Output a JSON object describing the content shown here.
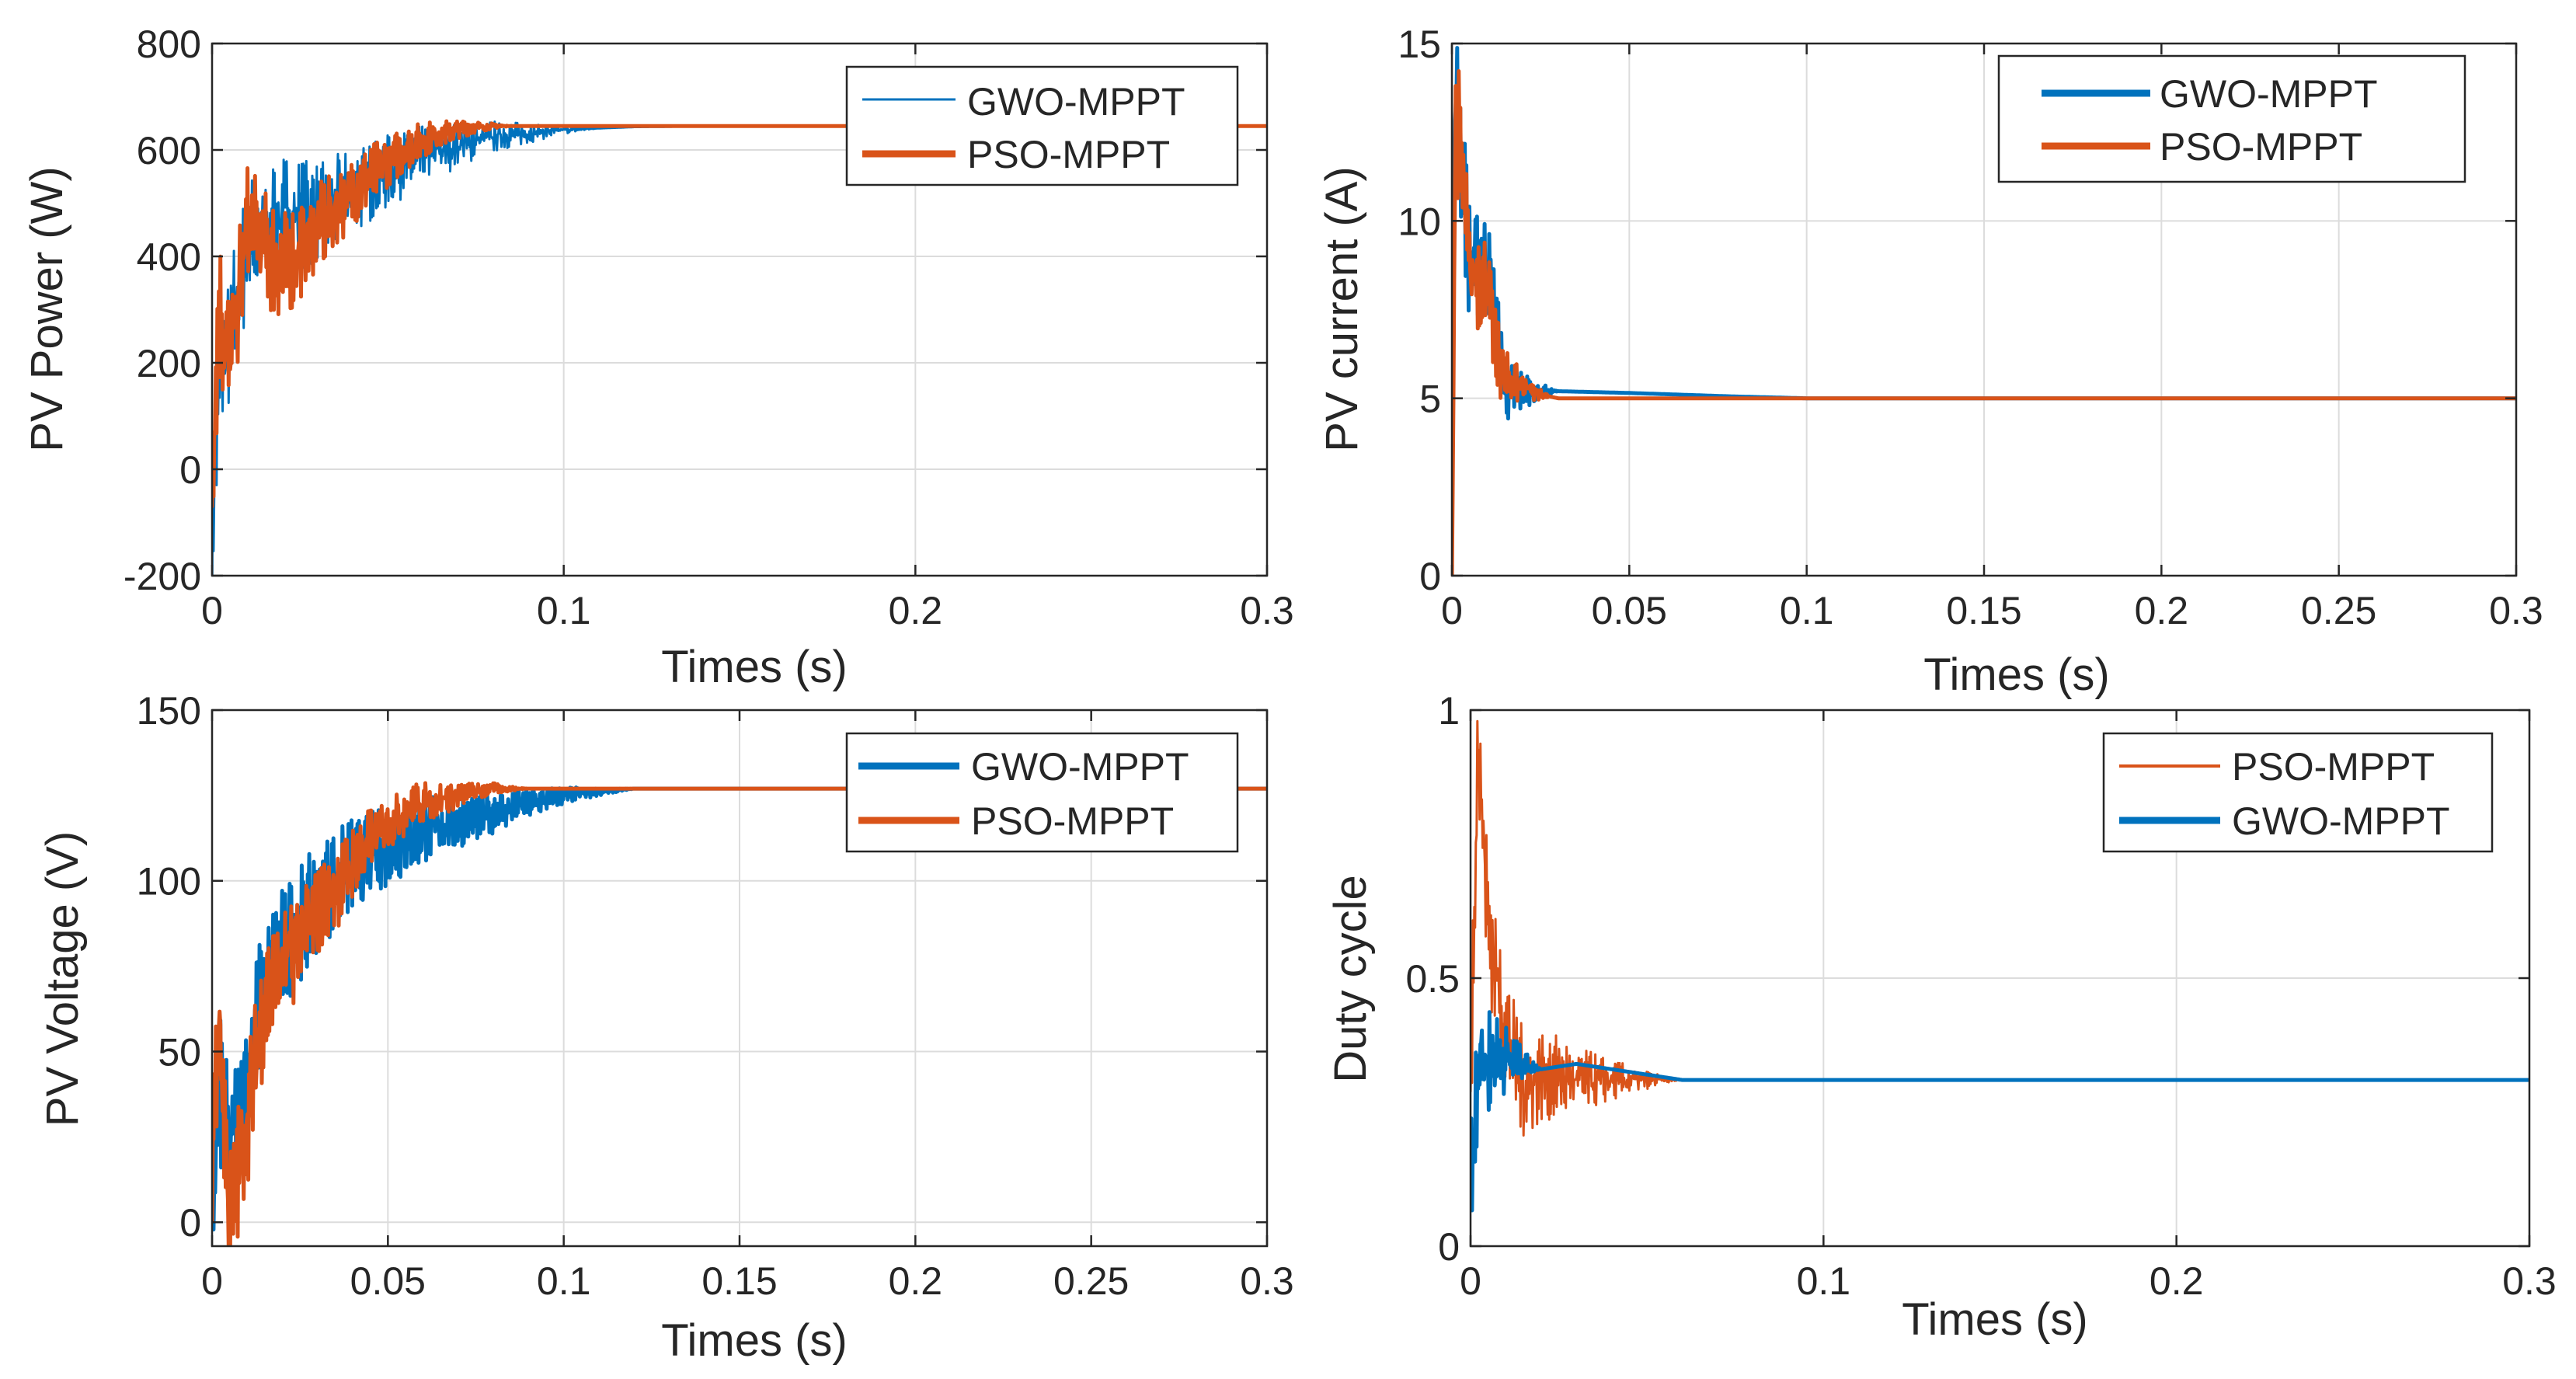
{
  "colors": {
    "blue": "#0072BD",
    "orange": "#D95319",
    "grid": "#DCDCDC",
    "axis": "#262626"
  },
  "charts": [
    {
      "id": "power",
      "ylabel": "PV Power (W)",
      "xlabel": "Times (s)",
      "xlim": [
        0,
        0.3
      ],
      "ylim": [
        -200,
        800
      ],
      "xticks": [
        0,
        0.1,
        0.2,
        0.3
      ],
      "xtick_labels": [
        "0",
        "0.1",
        "0.2",
        "0.3"
      ],
      "yticks": [
        -200,
        0,
        200,
        400,
        600,
        800
      ],
      "ytick_labels": [
        "-200",
        "0",
        "200",
        "400",
        "600",
        "800"
      ],
      "legend": [
        {
          "name": "GWO-MPPT",
          "color": "#0072BD",
          "width": "thin"
        },
        {
          "name": "PSO-MPPT",
          "color": "#D95319",
          "width": "thick"
        }
      ]
    },
    {
      "id": "current",
      "ylabel": "PV current (A)",
      "xlabel": "Times (s)",
      "xlim": [
        0,
        0.3
      ],
      "ylim": [
        0,
        15
      ],
      "xticks": [
        0,
        0.05,
        0.1,
        0.15,
        0.2,
        0.25,
        0.3
      ],
      "xtick_labels": [
        "0",
        "0.05",
        "0.1",
        "0.15",
        "0.2",
        "0.25",
        "0.3"
      ],
      "yticks": [
        0,
        5,
        10,
        15
      ],
      "ytick_labels": [
        "0",
        "5",
        "10",
        "15"
      ],
      "legend": [
        {
          "name": "GWO-MPPT",
          "color": "#0072BD",
          "width": "thick"
        },
        {
          "name": "PSO-MPPT",
          "color": "#D95319",
          "width": "thick"
        }
      ]
    },
    {
      "id": "voltage",
      "ylabel": "PV Voltage (V)",
      "xlabel": "Times (s)",
      "xlim": [
        0,
        0.3
      ],
      "ylim": [
        -7,
        150
      ],
      "xticks": [
        0,
        0.05,
        0.1,
        0.15,
        0.2,
        0.25,
        0.3
      ],
      "xtick_labels": [
        "0",
        "0.05",
        "0.1",
        "0.15",
        "0.2",
        "0.25",
        "0.3"
      ],
      "yticks": [
        0,
        50,
        100,
        150
      ],
      "ytick_labels": [
        "0",
        "50",
        "100",
        "150"
      ],
      "legend": [
        {
          "name": "GWO-MPPT",
          "color": "#0072BD",
          "width": "thick"
        },
        {
          "name": "PSO-MPPT",
          "color": "#D95319",
          "width": "thick"
        }
      ]
    },
    {
      "id": "duty",
      "ylabel": "Duty cycle",
      "xlabel": "Times (s)",
      "xlim": [
        0,
        0.3
      ],
      "ylim": [
        0,
        1
      ],
      "xticks": [
        0,
        0.1,
        0.2,
        0.3
      ],
      "xtick_labels": [
        "0",
        "0.1",
        "0.2",
        "0.3"
      ],
      "yticks": [
        0,
        0.5,
        1
      ],
      "ytick_labels": [
        "0",
        "0.5",
        "1"
      ],
      "legend": [
        {
          "name": "PSO-MPPT",
          "color": "#D95319",
          "width": "thin"
        },
        {
          "name": "GWO-MPPT",
          "color": "#0072BD",
          "width": "thick"
        }
      ]
    }
  ],
  "chart_data": [
    {
      "type": "line",
      "ylabel": "PV Power (W)",
      "xlabel": "Times (s)",
      "xlim": [
        0,
        0.3
      ],
      "ylim": [
        -200,
        800
      ],
      "grid": true,
      "legend_position": "top-right",
      "series": [
        {
          "name": "GWO-MPPT",
          "x": [
            0,
            0.002,
            0.005,
            0.01,
            0.02,
            0.03,
            0.04,
            0.05,
            0.06,
            0.07,
            0.08,
            0.1,
            0.12,
            0.15,
            0.2,
            0.3
          ],
          "values": [
            -120,
            150,
            250,
            420,
            480,
            480,
            520,
            560,
            590,
            610,
            625,
            638,
            643,
            645,
            645,
            645
          ]
        },
        {
          "name": "PSO-MPPT",
          "x": [
            0,
            0.002,
            0.005,
            0.01,
            0.02,
            0.03,
            0.04,
            0.05,
            0.06,
            0.07,
            0.08,
            0.1,
            0.15,
            0.2,
            0.3
          ],
          "values": [
            0,
            300,
            200,
            450,
            380,
            450,
            520,
            580,
            620,
            640,
            645,
            645,
            645,
            645,
            645
          ]
        }
      ]
    },
    {
      "type": "line",
      "ylabel": "PV current (A)",
      "xlabel": "Times (s)",
      "xlim": [
        0,
        0.3
      ],
      "ylim": [
        0,
        15
      ],
      "grid": true,
      "legend_position": "top-right",
      "series": [
        {
          "name": "GWO-MPPT",
          "x": [
            0,
            0.001,
            0.005,
            0.01,
            0.012,
            0.015,
            0.02,
            0.03,
            0.05,
            0.08,
            0.1,
            0.2,
            0.3
          ],
          "values": [
            6,
            13.8,
            8.8,
            8.8,
            7.5,
            5.2,
            5.2,
            5.2,
            5.15,
            5.05,
            5.0,
            5.0,
            5.0
          ]
        },
        {
          "name": "PSO-MPPT",
          "x": [
            0,
            0.001,
            0.005,
            0.01,
            0.012,
            0.015,
            0.02,
            0.025,
            0.03,
            0.05,
            0.1,
            0.2,
            0.3
          ],
          "values": [
            0,
            13.5,
            8.5,
            8.3,
            6.5,
            5.5,
            5.4,
            5.1,
            5.0,
            5.0,
            5.0,
            5.0,
            5.0
          ]
        }
      ]
    },
    {
      "type": "line",
      "ylabel": "PV Voltage (V)",
      "xlabel": "Times (s)",
      "xlim": [
        0,
        0.3
      ],
      "ylim": [
        -7,
        150
      ],
      "grid": true,
      "legend_position": "top-right",
      "series": [
        {
          "name": "GWO-MPPT",
          "x": [
            0,
            0.002,
            0.005,
            0.01,
            0.015,
            0.02,
            0.03,
            0.04,
            0.05,
            0.06,
            0.08,
            0.1,
            0.12,
            0.15,
            0.2,
            0.3
          ],
          "values": [
            0,
            40,
            20,
            45,
            70,
            80,
            95,
            105,
            110,
            115,
            120,
            125,
            127,
            127,
            127,
            127
          ]
        },
        {
          "name": "PSO-MPPT",
          "x": [
            0,
            0.002,
            0.005,
            0.01,
            0.015,
            0.02,
            0.03,
            0.04,
            0.05,
            0.06,
            0.08,
            0.1,
            0.15,
            0.2,
            0.3
          ],
          "values": [
            20,
            60,
            0,
            30,
            65,
            75,
            90,
            105,
            118,
            123,
            127,
            127,
            127,
            127,
            127
          ]
        }
      ]
    },
    {
      "type": "line",
      "ylabel": "Duty cycle",
      "xlabel": "Times (s)",
      "xlim": [
        0,
        0.3
      ],
      "ylim": [
        0,
        1
      ],
      "grid": true,
      "legend_position": "top-right",
      "series": [
        {
          "name": "PSO-MPPT",
          "x": [
            0,
            0.002,
            0.005,
            0.01,
            0.015,
            0.02,
            0.03,
            0.05,
            0.06,
            0.1,
            0.2,
            0.3
          ],
          "values": [
            0.3,
            0.95,
            0.6,
            0.4,
            0.3,
            0.32,
            0.31,
            0.31,
            0.31,
            0.31,
            0.31,
            0.31
          ]
        },
        {
          "name": "GWO-MPPT",
          "x": [
            0,
            0.002,
            0.005,
            0.01,
            0.02,
            0.03,
            0.04,
            0.05,
            0.06,
            0.1,
            0.2,
            0.3
          ],
          "values": [
            0.1,
            0.35,
            0.35,
            0.35,
            0.33,
            0.34,
            0.33,
            0.32,
            0.31,
            0.31,
            0.31,
            0.31
          ]
        }
      ]
    }
  ]
}
